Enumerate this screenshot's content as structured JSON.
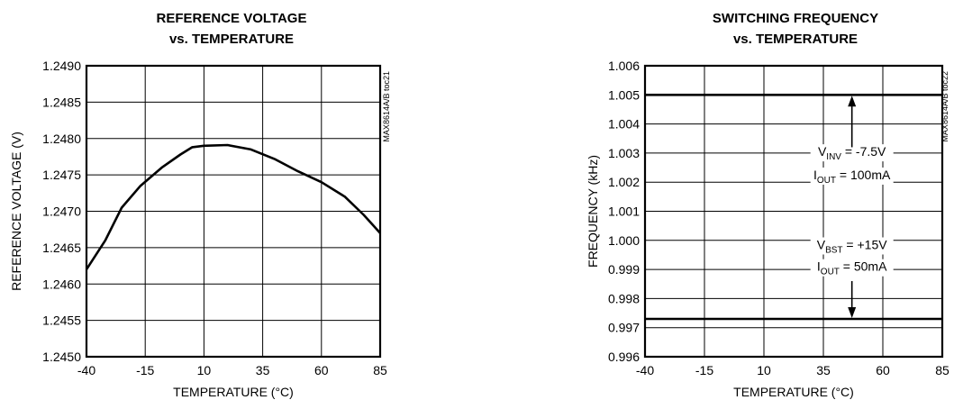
{
  "chart_data": [
    {
      "type": "line",
      "title": [
        "REFERENCE VOLTAGE",
        "vs. TEMPERATURE"
      ],
      "xlabel": "TEMPERATURE (°C)",
      "ylabel": "REFERENCE VOLTAGE (V)",
      "toc_label": "MAX8614A/B toc21",
      "xlim": [
        -40,
        85
      ],
      "ylim": [
        1.245,
        1.249
      ],
      "xticks": [
        "-40",
        "-15",
        "10",
        "35",
        "60",
        "85"
      ],
      "yticks": [
        "1.2450",
        "1.2455",
        "1.2460",
        "1.2465",
        "1.2470",
        "1.2475",
        "1.2480",
        "1.2485",
        "1.2490"
      ],
      "grid": true,
      "series": [
        {
          "x": [
            -40,
            -32,
            -25,
            -17,
            -8,
            0,
            5,
            10,
            20,
            30,
            40,
            50,
            60,
            70,
            78,
            85
          ],
          "y": [
            1.2462,
            1.2466,
            1.24705,
            1.24735,
            1.2476,
            1.24778,
            1.24788,
            1.2479,
            1.24791,
            1.24785,
            1.24772,
            1.24755,
            1.2474,
            1.2472,
            1.24695,
            1.2467
          ]
        }
      ]
    },
    {
      "type": "line",
      "title": [
        "SWITCHING FREQUENCY",
        "vs. TEMPERATURE"
      ],
      "xlabel": "TEMPERATURE (°C)",
      "ylabel": "FREQUENCY (kHz)",
      "toc_label": "MAX8614A/B toc22",
      "xlim": [
        -40,
        85
      ],
      "ylim": [
        0.996,
        1.006
      ],
      "xticks": [
        "-40",
        "-15",
        "10",
        "35",
        "60",
        "85"
      ],
      "yticks": [
        "0.996",
        "0.997",
        "0.998",
        "0.999",
        "1.000",
        "1.001",
        "1.002",
        "1.003",
        "1.004",
        "1.005",
        "1.006"
      ],
      "grid": true,
      "series": [
        {
          "x": [
            -40,
            85
          ],
          "y": [
            1.005,
            1.005
          ]
        },
        {
          "x": [
            -40,
            85
          ],
          "y": [
            0.9973,
            0.9973
          ]
        }
      ],
      "annotations": [
        {
          "main": "V",
          "sub": "INV",
          "rest": " =  -7.5V",
          "x": 47,
          "y": 1.0029
        },
        {
          "main": "I",
          "sub": "OUT",
          "rest": " = 100mA",
          "x": 47,
          "y": 1.0021
        },
        {
          "main": "V",
          "sub": "BST",
          "rest": " = +15V",
          "x": 47,
          "y": 0.9997
        },
        {
          "main": "I",
          "sub": "OUT",
          "rest": " = 50mA",
          "x": 47,
          "y": 0.99895
        }
      ],
      "arrows": [
        {
          "x": 47,
          "from": 1.0032,
          "to": 1.005
        },
        {
          "x": 47,
          "from": 0.9986,
          "to": 0.9973
        }
      ]
    }
  ]
}
